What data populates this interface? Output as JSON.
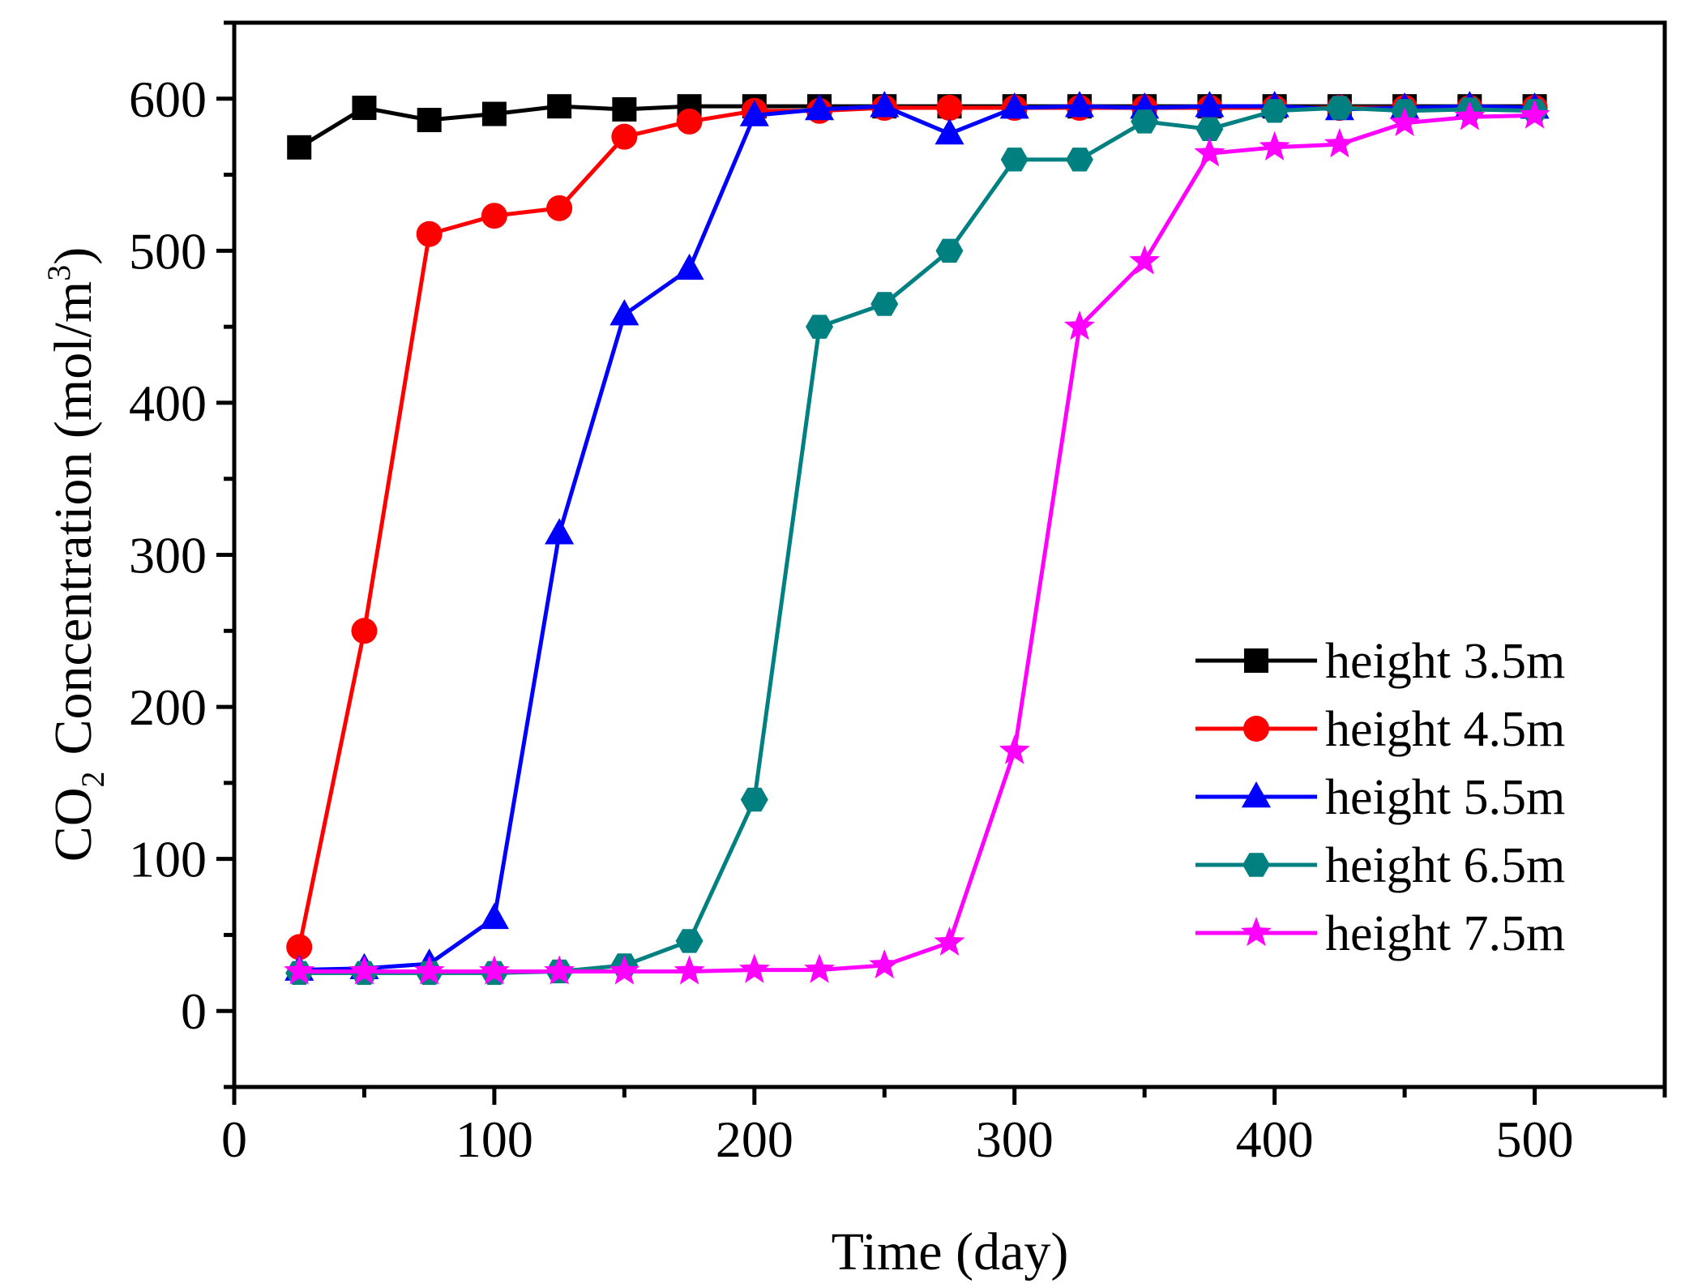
{
  "chart_data": {
    "type": "line",
    "title": "",
    "xlabel": "Time (day)",
    "ylabel_parts": {
      "prefix": "CO",
      "subscript": "2",
      "main": "Concentration (mol/m",
      "superscript": "3",
      "suffix": ")"
    },
    "xlim": [
      0,
      550
    ],
    "ylim": [
      -50,
      650
    ],
    "xticks": [
      0,
      100,
      200,
      300,
      400,
      500
    ],
    "yticks": [
      0,
      100,
      200,
      300,
      400,
      500,
      600
    ],
    "legend_position": "bottom-right",
    "series": [
      {
        "name": "height  3.5m",
        "color": "#000000",
        "marker": "square",
        "x": [
          25,
          50,
          75,
          100,
          125,
          150,
          175,
          200,
          225,
          250,
          275,
          300,
          325,
          350,
          375,
          400,
          425,
          450,
          475,
          500
        ],
        "y": [
          568,
          594,
          586,
          590,
          595,
          593,
          595,
          595,
          595,
          595,
          595,
          595,
          595,
          595,
          595,
          595,
          595,
          595,
          595,
          595
        ]
      },
      {
        "name": "height  4.5m",
        "color": "#ff0000",
        "marker": "circle",
        "x": [
          25,
          50,
          75,
          100,
          125,
          150,
          175,
          200,
          225,
          250,
          275,
          300,
          325,
          350,
          375,
          400,
          425,
          450,
          475,
          500
        ],
        "y": [
          42,
          250,
          511,
          523,
          528,
          575,
          585,
          592,
          592,
          594,
          594,
          594,
          594,
          594,
          594,
          594,
          594,
          594,
          594,
          594
        ]
      },
      {
        "name": "height  5.5m",
        "color": "#0000ff",
        "marker": "triangle",
        "x": [
          25,
          50,
          75,
          100,
          125,
          150,
          175,
          200,
          225,
          250,
          275,
          300,
          325,
          350,
          375,
          400,
          425,
          450,
          475,
          500
        ],
        "y": [
          27,
          28,
          31,
          61,
          314,
          458,
          488,
          589,
          593,
          595,
          577,
          594,
          595,
          594,
          595,
          595,
          593,
          594,
          595,
          594
        ]
      },
      {
        "name": "height  6.5m",
        "color": "#008080",
        "marker": "hexagon",
        "x": [
          25,
          50,
          75,
          100,
          125,
          150,
          175,
          200,
          225,
          250,
          275,
          300,
          325,
          350,
          375,
          400,
          425,
          450,
          475,
          500
        ],
        "y": [
          25,
          25,
          25,
          25,
          26,
          30,
          46,
          139,
          450,
          465,
          500,
          560,
          560,
          585,
          580,
          592,
          594,
          592,
          593,
          592
        ]
      },
      {
        "name": "height  7.5m",
        "color": "#ff00ff",
        "marker": "star",
        "x": [
          25,
          50,
          75,
          100,
          125,
          150,
          175,
          200,
          225,
          250,
          275,
          300,
          325,
          350,
          375,
          400,
          425,
          450,
          475,
          500
        ],
        "y": [
          26,
          26,
          26,
          26,
          26,
          26,
          26,
          27,
          27,
          30,
          45,
          171,
          450,
          493,
          564,
          568,
          570,
          584,
          588,
          589
        ]
      }
    ]
  }
}
